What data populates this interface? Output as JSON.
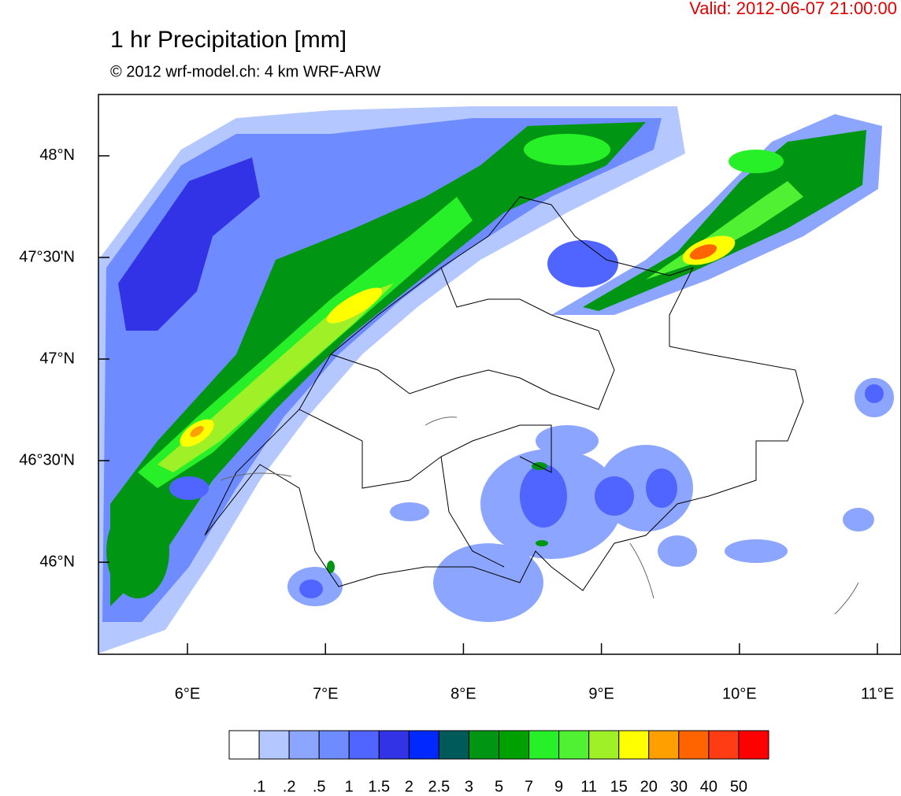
{
  "chart_data": {
    "type": "map",
    "title": "1 hr Precipitation [mm]",
    "subtitle": "© 2012 wrf-model.ch: 4 km WRF-ARW",
    "valid": "Valid: 2012-06-07 21:00:00",
    "xlim": [
      5.355,
      11.171
    ],
    "ylim": [
      45.547,
      48.302
    ],
    "xticks": [
      {
        "value": 6,
        "label": "6°E"
      },
      {
        "value": 7,
        "label": "7°E"
      },
      {
        "value": 8,
        "label": "8°E"
      },
      {
        "value": 9,
        "label": "9°E"
      },
      {
        "value": 10,
        "label": "10°E"
      },
      {
        "value": 11,
        "label": "11°E"
      }
    ],
    "yticks": [
      {
        "value": 46,
        "label": "46°N"
      },
      {
        "value": 46.5,
        "label": "46°30'N"
      },
      {
        "value": 47,
        "label": "47°N"
      },
      {
        "value": 47.5,
        "label": "47°30'N"
      },
      {
        "value": 48,
        "label": "48°N"
      }
    ],
    "legend": {
      "labels": [
        ".1",
        ".2",
        ".5",
        "1",
        "1.5",
        "2",
        "2.5",
        "3",
        "5",
        "7",
        "9",
        "11",
        "15",
        "20",
        "30",
        "40",
        "50"
      ],
      "colors": [
        "#ffffff",
        "#b4c8ff",
        "#8ca5ff",
        "#6e8cff",
        "#5064ff",
        "#3232e6",
        "#0028ff",
        "#005a5a",
        "#009614",
        "#00a000",
        "#28f028",
        "#50f032",
        "#a0f028",
        "#ffff00",
        "#ffa000",
        "#ff6400",
        "#ff3c14",
        "#ff0000"
      ]
    }
  }
}
